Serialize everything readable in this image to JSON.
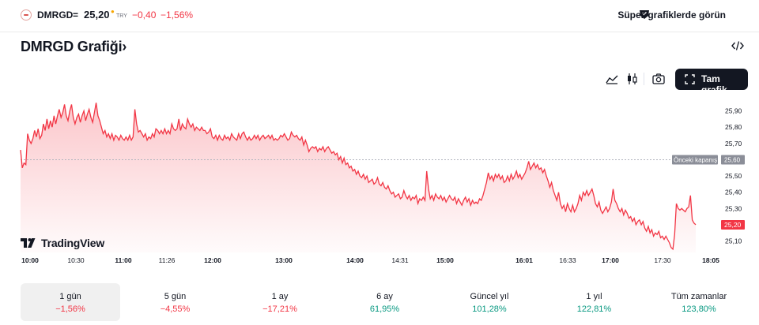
{
  "header": {
    "symbol": "DMRGD",
    "equals": "=",
    "price": "25,20",
    "currency": "TRY",
    "change": "−0,40",
    "change_pct": "−1,56%",
    "super_chart_link": "Süper-grafiklerde görün",
    "colors": {
      "negative": "#f23645",
      "positive": "#089981",
      "dot": "#f7a600"
    }
  },
  "title": {
    "text": "DMRGD Grafiği",
    "chevron": "›"
  },
  "toolbar": {
    "icons": [
      "area-chart-icon",
      "candlestick-icon",
      "camera-icon",
      "embed-code-icon",
      "fullscreen-icon"
    ],
    "fullscreen_label": "Tam grafik"
  },
  "branding": {
    "text": "TradingView"
  },
  "chart_data": {
    "type": "area",
    "y_ticks": [
      "25,90",
      "25,80",
      "25,70",
      "25,50",
      "25,40",
      "25,30",
      "25,10"
    ],
    "x_ticks": [
      {
        "label": "10:00",
        "bold": true
      },
      {
        "label": "10:30",
        "bold": false
      },
      {
        "label": "11:00",
        "bold": true
      },
      {
        "label": "11:26",
        "bold": false
      },
      {
        "label": "12:00",
        "bold": true
      },
      {
        "label": "13:00",
        "bold": true
      },
      {
        "label": "14:00",
        "bold": true
      },
      {
        "label": "14:31",
        "bold": false
      },
      {
        "label": "15:00",
        "bold": true
      },
      {
        "label": "16:01",
        "bold": true
      },
      {
        "label": "16:33",
        "bold": false
      },
      {
        "label": "17:00",
        "bold": true
      },
      {
        "label": "17:30",
        "bold": false
      },
      {
        "label": "18:05",
        "bold": true
      }
    ],
    "previous_close": {
      "label": "Önceki kapanış",
      "value": 25.6,
      "value_label": "25,60"
    },
    "last": {
      "value": 25.2,
      "value_label": "25,20"
    },
    "ylim": [
      25.03,
      26.0
    ],
    "line_color": "#f23645",
    "series": [
      {
        "values": [
          25.66,
          25.55,
          25.58,
          25.57,
          25.76,
          25.72,
          25.7,
          25.73,
          25.78,
          25.74,
          25.79,
          25.73,
          25.75,
          25.82,
          25.78,
          25.85,
          25.79,
          25.84,
          25.8,
          25.87,
          25.82,
          25.87,
          25.91,
          25.86,
          25.89,
          25.94,
          25.87,
          25.84,
          25.9,
          25.94,
          25.86,
          25.82,
          25.86,
          25.88,
          25.83,
          25.87,
          25.9,
          25.84,
          25.88,
          25.91,
          25.86,
          25.83,
          25.89,
          25.95,
          25.87,
          25.84,
          25.8,
          25.76,
          25.78,
          25.74,
          25.76,
          25.73,
          25.76,
          25.72,
          25.75,
          25.74,
          25.72,
          25.75,
          25.73,
          25.72,
          25.74,
          25.72,
          25.75,
          25.72,
          25.74,
          25.91,
          25.82,
          25.77,
          25.78,
          25.76,
          25.74,
          25.76,
          25.72,
          25.74,
          25.73,
          25.76,
          25.74,
          25.79,
          25.78,
          25.76,
          25.78,
          25.76,
          25.79,
          25.76,
          25.78,
          25.76,
          25.82,
          25.79,
          25.78,
          25.79,
          25.85,
          25.78,
          25.82,
          25.8,
          25.79,
          25.85,
          25.82,
          25.8,
          25.82,
          25.78,
          25.8,
          25.79,
          25.78,
          25.8,
          25.78,
          25.78,
          25.76,
          25.77,
          25.79,
          25.74,
          25.73,
          25.75,
          25.72,
          25.75,
          25.73,
          25.72,
          25.75,
          25.73,
          25.74,
          25.72,
          25.76,
          25.74,
          25.73,
          25.72,
          25.76,
          25.73,
          25.76,
          25.77,
          25.74,
          25.72,
          25.74,
          25.72,
          25.73,
          25.75,
          25.73,
          25.75,
          25.72,
          25.74,
          25.75,
          25.73,
          25.74,
          25.75,
          25.73,
          25.75,
          25.72,
          25.73,
          25.72,
          25.73,
          25.75,
          25.74,
          25.76,
          25.74,
          25.72,
          25.73,
          25.77,
          25.75,
          25.74,
          25.75,
          25.73,
          25.72,
          25.74,
          25.69,
          25.72,
          25.69,
          25.65,
          25.67,
          25.68,
          25.67,
          25.68,
          25.65,
          25.67,
          25.66,
          25.68,
          25.65,
          25.67,
          25.68,
          25.66,
          25.64,
          25.65,
          25.63,
          25.64,
          25.6,
          25.62,
          25.58,
          25.61,
          25.57,
          25.58,
          25.55,
          25.56,
          25.53,
          25.54,
          25.51,
          25.53,
          25.5,
          25.49,
          25.51,
          25.48,
          25.5,
          25.46,
          25.47,
          25.48,
          25.45,
          25.46,
          25.49,
          25.45,
          25.44,
          25.46,
          25.43,
          25.42,
          25.44,
          25.41,
          25.39,
          25.4,
          25.37,
          25.38,
          25.39,
          25.36,
          25.37,
          25.41,
          25.38,
          25.36,
          25.38,
          25.35,
          25.37,
          25.36,
          25.38,
          25.33,
          25.36,
          25.35,
          25.37,
          25.35,
          25.53,
          25.42,
          25.36,
          25.38,
          25.35,
          25.39,
          25.37,
          25.36,
          25.38,
          25.35,
          25.37,
          25.34,
          25.36,
          25.38,
          25.36,
          25.35,
          25.37,
          25.33,
          25.36,
          25.34,
          25.32,
          25.35,
          25.37,
          25.34,
          25.36,
          25.32,
          25.35,
          25.33,
          25.34,
          25.33,
          25.36,
          25.35,
          25.38,
          25.42,
          25.46,
          25.52,
          25.48,
          25.5,
          25.47,
          25.51,
          25.49,
          25.51,
          25.48,
          25.5,
          25.46,
          25.47,
          25.5,
          25.47,
          25.51,
          25.48,
          25.5,
          25.53,
          25.49,
          25.51,
          25.48,
          25.5,
          25.52,
          25.55,
          25.59,
          25.54,
          25.56,
          25.58,
          25.55,
          25.57,
          25.54,
          25.55,
          25.52,
          25.54,
          25.5,
          25.47,
          25.43,
          25.46,
          25.41,
          25.38,
          25.35,
          25.4,
          25.33,
          25.3,
          25.32,
          25.28,
          25.33,
          25.3,
          25.28,
          25.32,
          25.28,
          25.3,
          25.33,
          25.38,
          25.35,
          25.4,
          25.38,
          25.41,
          25.38,
          25.4,
          25.42,
          25.38,
          25.33,
          25.31,
          25.34,
          25.29,
          25.27,
          25.29,
          25.31,
          25.28,
          25.3,
          25.34,
          25.42,
          25.35,
          25.33,
          25.3,
          25.28,
          25.3,
          25.26,
          25.29,
          25.27,
          25.24,
          25.25,
          25.22,
          25.24,
          25.2,
          25.22,
          25.23,
          25.2,
          25.22,
          25.18,
          25.16,
          25.19,
          25.15,
          25.17,
          25.13,
          25.15,
          25.14,
          25.16,
          25.12,
          25.13,
          25.11,
          25.13,
          25.11,
          25.09,
          25.06,
          25.05,
          25.14,
          25.33,
          25.3,
          25.29,
          25.3,
          25.29,
          25.28,
          25.3,
          25.31,
          25.38,
          25.23,
          25.21,
          25.2
        ]
      }
    ]
  },
  "periods": [
    {
      "name": "1 gün",
      "change": "−1,56%",
      "sign": "neg",
      "active": true
    },
    {
      "name": "5 gün",
      "change": "−4,55%",
      "sign": "neg",
      "active": false
    },
    {
      "name": "1 ay",
      "change": "−17,21%",
      "sign": "neg",
      "active": false
    },
    {
      "name": "6 ay",
      "change": "61,95%",
      "sign": "pos",
      "active": false
    },
    {
      "name": "Güncel yıl",
      "change": "101,28%",
      "sign": "pos",
      "active": false
    },
    {
      "name": "1 yıl",
      "change": "122,81%",
      "sign": "pos",
      "active": false
    },
    {
      "name": "Tüm zamanlar",
      "change": "123,80%",
      "sign": "pos",
      "active": false
    }
  ]
}
